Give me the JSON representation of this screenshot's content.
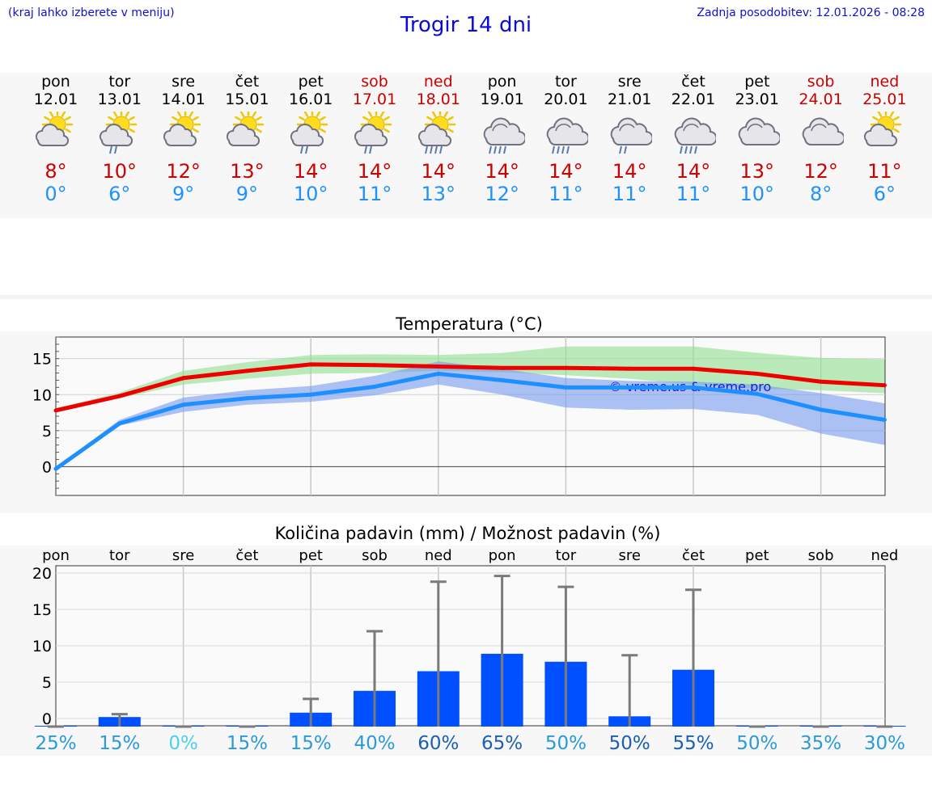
{
  "header": {
    "hint": "(kraj lahko izberete v meniju)",
    "title": "Trogir 14 dni",
    "updated": "Zadnja posodobitev: 12.01.2026 - 08:28"
  },
  "days": [
    {
      "name": "pon",
      "date": "12.01",
      "weekend": false,
      "icon": "partly-sunny-icon",
      "max": "8°",
      "min": "0°"
    },
    {
      "name": "tor",
      "date": "13.01",
      "weekend": false,
      "icon": "sun-cloud-rain-icon",
      "max": "10°",
      "min": "6°"
    },
    {
      "name": "sre",
      "date": "14.01",
      "weekend": false,
      "icon": "partly-sunny-icon",
      "max": "12°",
      "min": "9°"
    },
    {
      "name": "čet",
      "date": "15.01",
      "weekend": false,
      "icon": "partly-sunny-icon",
      "max": "13°",
      "min": "9°"
    },
    {
      "name": "pet",
      "date": "16.01",
      "weekend": false,
      "icon": "sun-cloud-rain-icon",
      "max": "14°",
      "min": "10°"
    },
    {
      "name": "sob",
      "date": "17.01",
      "weekend": true,
      "icon": "sun-cloud-rain-icon",
      "max": "14°",
      "min": "11°"
    },
    {
      "name": "ned",
      "date": "18.01",
      "weekend": true,
      "icon": "sun-cloud-heavy-rain-icon",
      "max": "14°",
      "min": "13°"
    },
    {
      "name": "pon",
      "date": "19.01",
      "weekend": false,
      "icon": "cloud-heavy-rain-icon",
      "max": "14°",
      "min": "12°"
    },
    {
      "name": "tor",
      "date": "20.01",
      "weekend": false,
      "icon": "cloud-heavy-rain-icon",
      "max": "14°",
      "min": "11°"
    },
    {
      "name": "sre",
      "date": "21.01",
      "weekend": false,
      "icon": "cloud-rain-icon",
      "max": "14°",
      "min": "11°"
    },
    {
      "name": "čet",
      "date": "22.01",
      "weekend": false,
      "icon": "cloud-heavy-rain-icon",
      "max": "14°",
      "min": "11°"
    },
    {
      "name": "pet",
      "date": "23.01",
      "weekend": false,
      "icon": "cloudy-icon",
      "max": "13°",
      "min": "10°"
    },
    {
      "name": "sob",
      "date": "24.01",
      "weekend": true,
      "icon": "cloudy-icon",
      "max": "12°",
      "min": "8°"
    },
    {
      "name": "ned",
      "date": "25.01",
      "weekend": true,
      "icon": "partly-sunny-icon",
      "max": "11°",
      "min": "6°"
    }
  ],
  "chart_data": [
    {
      "type": "line",
      "title": "Temperatura (°C)",
      "watermark": "© vreme.us & vreme.pro",
      "ylim": [
        -4,
        18
      ],
      "yticks": [
        0,
        5,
        10,
        15
      ],
      "x": [
        0,
        1,
        2,
        3,
        4,
        5,
        6,
        7,
        8,
        9,
        10,
        11,
        12,
        13
      ],
      "series": [
        {
          "name": "max",
          "color": "#ee0000",
          "values": [
            7.8,
            9.8,
            12.3,
            13.3,
            14.2,
            14.1,
            13.9,
            13.7,
            13.7,
            13.6,
            13.6,
            12.9,
            11.8,
            11.3
          ],
          "band_low": [
            7.8,
            9.5,
            11.4,
            12.2,
            12.9,
            13.0,
            13.3,
            13.1,
            12.7,
            12.2,
            11.4,
            10.8,
            10.6,
            10.2
          ],
          "band_high": [
            8.1,
            10.3,
            13.3,
            14.5,
            15.5,
            15.6,
            15.5,
            15.8,
            16.7,
            16.7,
            16.7,
            15.8,
            15.1,
            14.9
          ],
          "band_color": "#90e090"
        },
        {
          "name": "min",
          "color": "#1e8fff",
          "values": [
            -0.3,
            6.0,
            8.6,
            9.5,
            10.0,
            11.1,
            12.9,
            12.0,
            11.0,
            11.0,
            11.0,
            10.1,
            7.9,
            6.5
          ],
          "band_low": [
            -0.6,
            5.7,
            7.6,
            8.6,
            9.0,
            9.9,
            11.4,
            10.0,
            8.2,
            7.9,
            8.0,
            7.2,
            4.6,
            3.0
          ],
          "band_high": [
            -0.1,
            6.5,
            9.6,
            10.6,
            11.2,
            12.6,
            14.6,
            13.6,
            12.3,
            11.9,
            11.8,
            11.4,
            10.2,
            8.8
          ],
          "band_color": "#7799ee"
        }
      ]
    },
    {
      "type": "bar",
      "title": "Količina padavin (mm) / Možnost padavin (%)",
      "categories": [
        "pon",
        "tor",
        "sre",
        "čet",
        "pet",
        "sob",
        "ned",
        "pon",
        "tor",
        "sre",
        "čet",
        "pet",
        "sob",
        "ned"
      ],
      "ylim": [
        -1,
        21
      ],
      "yticks": [
        0,
        5,
        10,
        15,
        20
      ],
      "values": [
        0,
        0.2,
        0,
        0,
        0.8,
        3.8,
        6.5,
        8.9,
        7.8,
        0.3,
        6.7,
        0,
        0,
        0
      ],
      "error_max": [
        0,
        0.6,
        0,
        0,
        2.7,
        12.0,
        18.8,
        19.6,
        18.1,
        8.7,
        17.7,
        0,
        0,
        0
      ],
      "bar_color": "#0050ff",
      "chance": [
        "25%",
        "15%",
        "0%",
        "15%",
        "15%",
        "40%",
        "60%",
        "65%",
        "50%",
        "50%",
        "55%",
        "50%",
        "35%",
        "30%"
      ],
      "chance_colors": [
        "#2a9ad8",
        "#2a9ad8",
        "#4ad0f0",
        "#2a9ad8",
        "#2a9ad8",
        "#2a9ad8",
        "#1a5fb0",
        "#1a5fb0",
        "#2a9ad8",
        "#1a5fb0",
        "#1a5fb0",
        "#2a9ad8",
        "#2a9ad8",
        "#2a9ad8"
      ]
    }
  ]
}
